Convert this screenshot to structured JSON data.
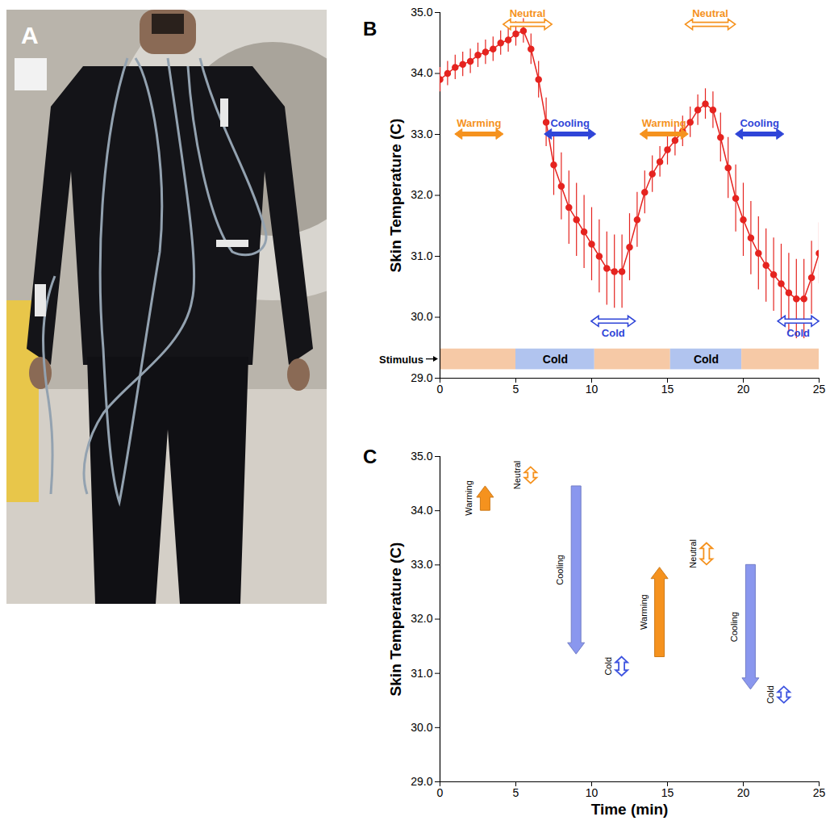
{
  "photo": {
    "panel": "A"
  },
  "chart_data": [
    {
      "panel": "B",
      "type": "line",
      "y_label": "Skin Temperature (C)",
      "xlim": [
        0,
        25
      ],
      "xticks": [
        0,
        5,
        10,
        15,
        20,
        25
      ],
      "ylim": [
        29,
        35
      ],
      "yticks": [
        29,
        30,
        31,
        32,
        33,
        34,
        35
      ],
      "color": "#e52420",
      "marker": "circle",
      "x": [
        0,
        0.5,
        1,
        1.5,
        2,
        2.5,
        3,
        3.5,
        4,
        4.5,
        5,
        5.5,
        6,
        6.5,
        7,
        7.5,
        8,
        8.5,
        9,
        9.5,
        10,
        10.5,
        11,
        11.5,
        12,
        12.5,
        13,
        13.5,
        14,
        14.5,
        15,
        15.5,
        16,
        16.5,
        17,
        17.5,
        18,
        18.5,
        19,
        19.5,
        20,
        20.5,
        21,
        21.5,
        22,
        22.5,
        23,
        23.5,
        24,
        24.5,
        25
      ],
      "values": [
        33.9,
        34.0,
        34.1,
        34.15,
        34.2,
        34.3,
        34.35,
        34.4,
        34.5,
        34.55,
        34.65,
        34.7,
        34.4,
        33.9,
        33.2,
        32.5,
        32.15,
        31.8,
        31.6,
        31.4,
        31.2,
        31.0,
        30.8,
        30.75,
        30.75,
        31.15,
        31.6,
        32.05,
        32.35,
        32.55,
        32.75,
        32.9,
        33.05,
        33.2,
        33.4,
        33.5,
        33.4,
        32.95,
        32.45,
        31.95,
        31.6,
        31.3,
        31.05,
        30.85,
        30.7,
        30.55,
        30.4,
        30.3,
        30.3,
        30.65,
        31.05
      ],
      "errors": [
        0.2,
        0.2,
        0.2,
        0.2,
        0.2,
        0.2,
        0.2,
        0.2,
        0.2,
        0.2,
        0.2,
        0.2,
        0.25,
        0.3,
        0.4,
        0.5,
        0.55,
        0.6,
        0.6,
        0.6,
        0.6,
        0.6,
        0.6,
        0.6,
        0.6,
        0.55,
        0.45,
        0.35,
        0.3,
        0.25,
        0.25,
        0.25,
        0.25,
        0.25,
        0.25,
        0.25,
        0.3,
        0.4,
        0.5,
        0.55,
        0.6,
        0.6,
        0.6,
        0.6,
        0.6,
        0.65,
        0.65,
        0.65,
        0.65,
        0.6,
        0.5
      ],
      "annotations": [
        {
          "text": "Warming",
          "x1": 1.0,
          "x2": 4.2,
          "y": 33.0,
          "color": "#f5921e",
          "line_style": "solid"
        },
        {
          "text": "Neutral",
          "x1": 4.2,
          "x2": 7.4,
          "y": 34.8,
          "color": "#f5921e",
          "line_style": "outline"
        },
        {
          "text": "Cooling",
          "x1": 6.9,
          "x2": 10.3,
          "y": 33.0,
          "color": "#2f45d8",
          "line_style": "solid"
        },
        {
          "text": "Cold",
          "x1": 10.0,
          "x2": 12.9,
          "y": 29.93,
          "color": "#2f45d8",
          "line_style": "outline"
        },
        {
          "text": "Warming",
          "x1": 13.2,
          "x2": 16.4,
          "y": 33.0,
          "color": "#f5921e",
          "line_style": "solid"
        },
        {
          "text": "Neutral",
          "x1": 16.2,
          "x2": 19.5,
          "y": 34.8,
          "color": "#f5921e",
          "line_style": "outline"
        },
        {
          "text": "Cooling",
          "x1": 19.5,
          "x2": 22.7,
          "y": 33.0,
          "color": "#2f45d8",
          "line_style": "solid"
        },
        {
          "text": "Cold",
          "x1": 22.3,
          "x2": 25.0,
          "y": 29.93,
          "color": "#2f45d8",
          "line_style": "outline"
        }
      ],
      "stimulus": {
        "label": "Stimulus",
        "y1": 29.14,
        "y2": 29.48,
        "segments": [
          {
            "start": 0,
            "end": 5,
            "label": null,
            "color": "#f6c9a6"
          },
          {
            "start": 5,
            "end": 10.2,
            "label": "Cold",
            "color": "#b1c4ef"
          },
          {
            "start": 10.2,
            "end": 15.2,
            "label": null,
            "color": "#f6c9a6"
          },
          {
            "start": 15.2,
            "end": 19.9,
            "label": "Cold",
            "color": "#b1c4ef"
          },
          {
            "start": 19.9,
            "end": 25,
            "label": null,
            "color": "#f6c9a6"
          }
        ]
      }
    },
    {
      "panel": "C",
      "type": "arrow",
      "x_label": "Time (min)",
      "y_label": "Skin Temperature (C)",
      "xlim": [
        0,
        25
      ],
      "xticks": [
        0,
        5,
        10,
        15,
        20,
        25
      ],
      "ylim": [
        29,
        35
      ],
      "yticks": [
        29,
        30,
        31,
        32,
        33,
        34,
        35
      ],
      "arrows": [
        {
          "text": "Warming",
          "x": 3.0,
          "y_start": 34.0,
          "y_end": 34.45,
          "color": "#f5921e",
          "line_style": "solid"
        },
        {
          "text": "Neutral",
          "x": 6.0,
          "y_start": 34.5,
          "y_end": 34.8,
          "color": "#f5921e",
          "line_style": "outline"
        },
        {
          "text": "Cooling",
          "x": 9.0,
          "y_start": 34.45,
          "y_end": 31.35,
          "color": "#8a97ee",
          "line_style": "solid"
        },
        {
          "text": "Cold",
          "x": 12.0,
          "y_start": 30.95,
          "y_end": 31.3,
          "color": "#3f55e0",
          "line_style": "outline"
        },
        {
          "text": "Warming",
          "x": 14.5,
          "y_start": 31.3,
          "y_end": 32.95,
          "color": "#f5921e",
          "line_style": "solid"
        },
        {
          "text": "Neutral",
          "x": 17.6,
          "y_start": 33.0,
          "y_end": 33.4,
          "color": "#f5921e",
          "line_style": "outline"
        },
        {
          "text": "Cooling",
          "x": 20.5,
          "y_start": 33.0,
          "y_end": 30.7,
          "color": "#8a97ee",
          "line_style": "solid"
        },
        {
          "text": "Cold",
          "x": 22.7,
          "y_start": 30.45,
          "y_end": 30.75,
          "color": "#3f55e0",
          "line_style": "outline"
        }
      ]
    }
  ]
}
